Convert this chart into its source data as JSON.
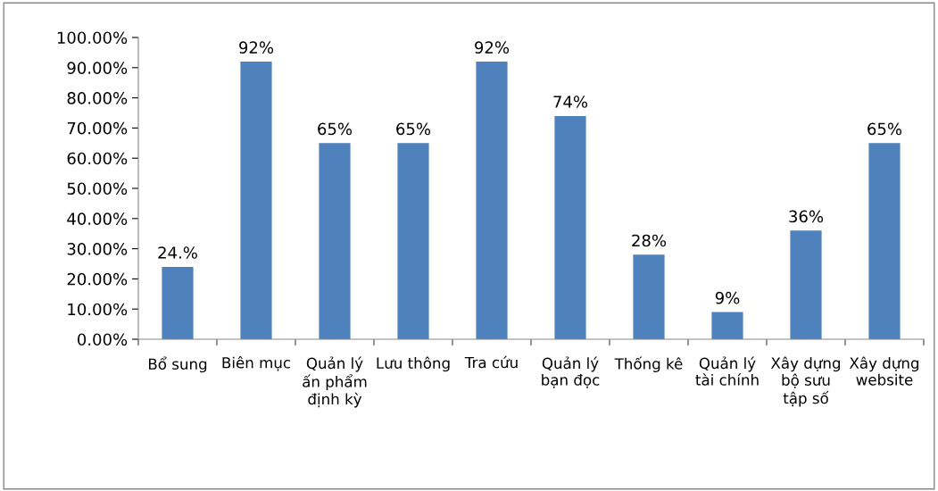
{
  "chart_data": {
    "type": "bar",
    "categories": [
      "Bổ sung",
      "Biên mục",
      "Quản lý ấn phẩm định kỳ",
      "Lưu thông",
      "Tra cứu",
      "Quản lý bạn đọc",
      "Thống kê",
      "Quản lý tài chính",
      "Xây dựng bộ sưu tập số",
      "Xây dựng website"
    ],
    "values": [
      24,
      92,
      65,
      65,
      92,
      74,
      28,
      9,
      36,
      65
    ],
    "value_labels": [
      "24.%",
      "92%",
      "65%",
      "65%",
      "92%",
      "74%",
      "28%",
      "9%",
      "36%",
      "65%"
    ],
    "color": "#4f81bd",
    "ylim": [
      0,
      100
    ],
    "yticks": [
      {
        "value": 0,
        "label": "0.00%"
      },
      {
        "value": 10,
        "label": "10.00%"
      },
      {
        "value": 20,
        "label": "20.00%"
      },
      {
        "value": 30,
        "label": "30.00%"
      },
      {
        "value": 40,
        "label": "40.00%"
      },
      {
        "value": 50,
        "label": "50.00%"
      },
      {
        "value": 60,
        "label": "60.00%"
      },
      {
        "value": 70,
        "label": "70.00%"
      },
      {
        "value": 80,
        "label": "80.00%"
      },
      {
        "value": 90,
        "label": "90.00%"
      },
      {
        "value": 100,
        "label": "100.00%"
      }
    ],
    "grid": false,
    "legend": false
  }
}
